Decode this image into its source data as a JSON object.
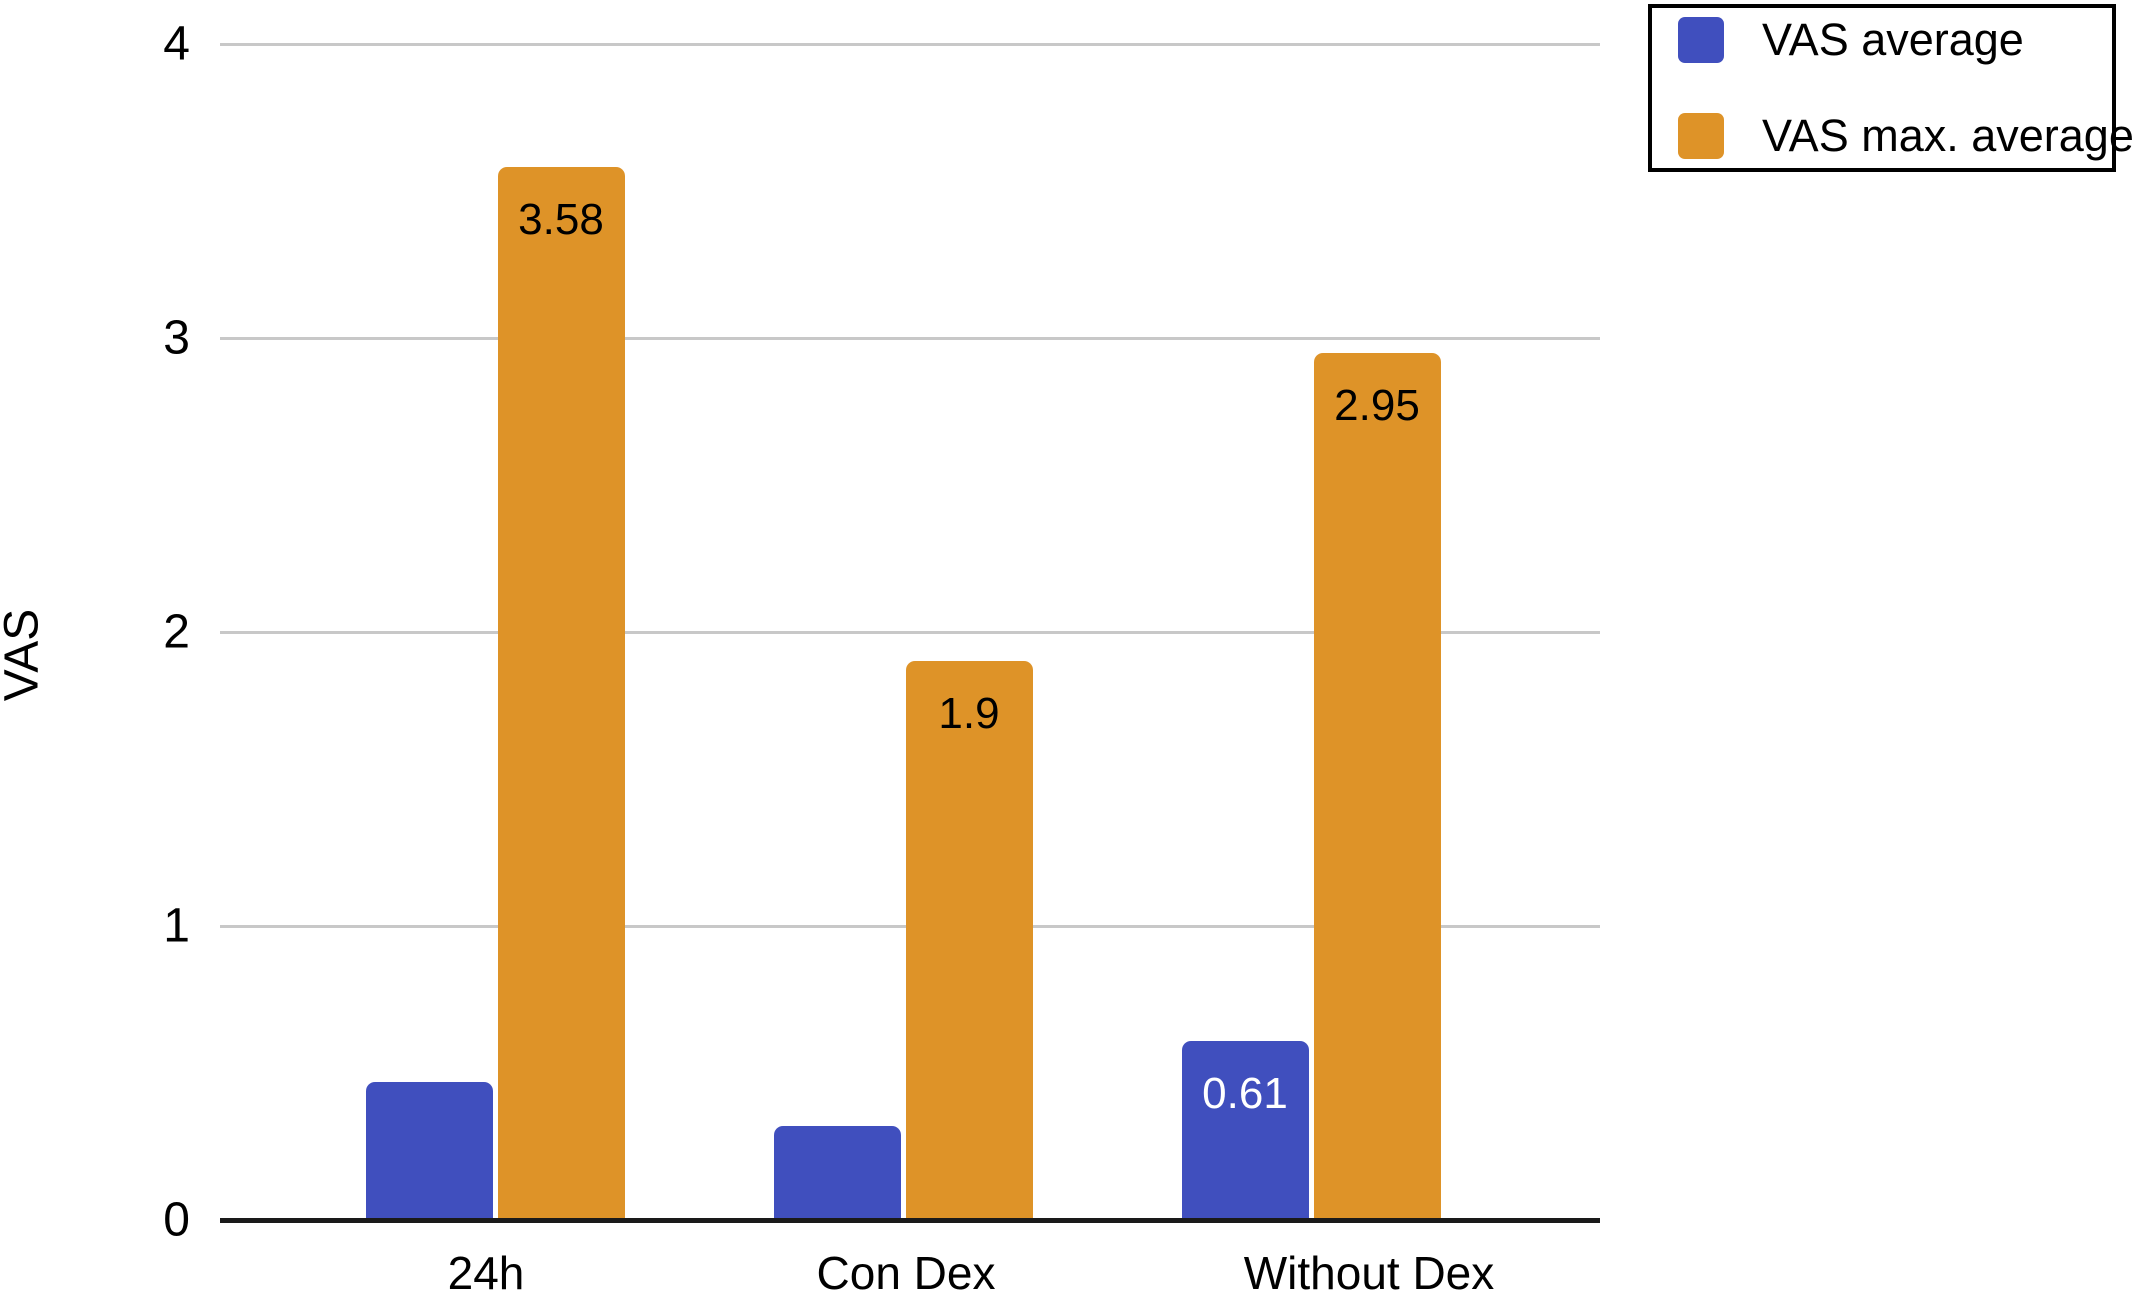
{
  "chart_data": {
    "type": "bar",
    "title": "",
    "xlabel": "",
    "ylabel": "VAS",
    "categories": [
      "24h",
      "Con Dex",
      "Without Dex"
    ],
    "series": [
      {
        "name": "VAS average",
        "color": "#404fbe",
        "values": [
          0.47,
          0.32,
          0.61
        ],
        "value_labels": [
          "",
          "",
          "0.61"
        ],
        "label_color": "#ffffff"
      },
      {
        "name": "VAS max. average",
        "color": "#de9328",
        "values": [
          3.58,
          1.9,
          2.95
        ],
        "value_labels": [
          "3.58",
          "1.9",
          "2.95"
        ],
        "label_color": "#000000"
      }
    ],
    "ylim": [
      0,
      4
    ],
    "yticks": [
      0,
      1,
      2,
      3,
      4
    ],
    "grid": true,
    "legend_position": "top-right"
  },
  "colors": {
    "gridline": "#c8c8c8",
    "axis_line": "#1a1a1a",
    "background": "#ffffff",
    "legend_border": "#000000"
  }
}
